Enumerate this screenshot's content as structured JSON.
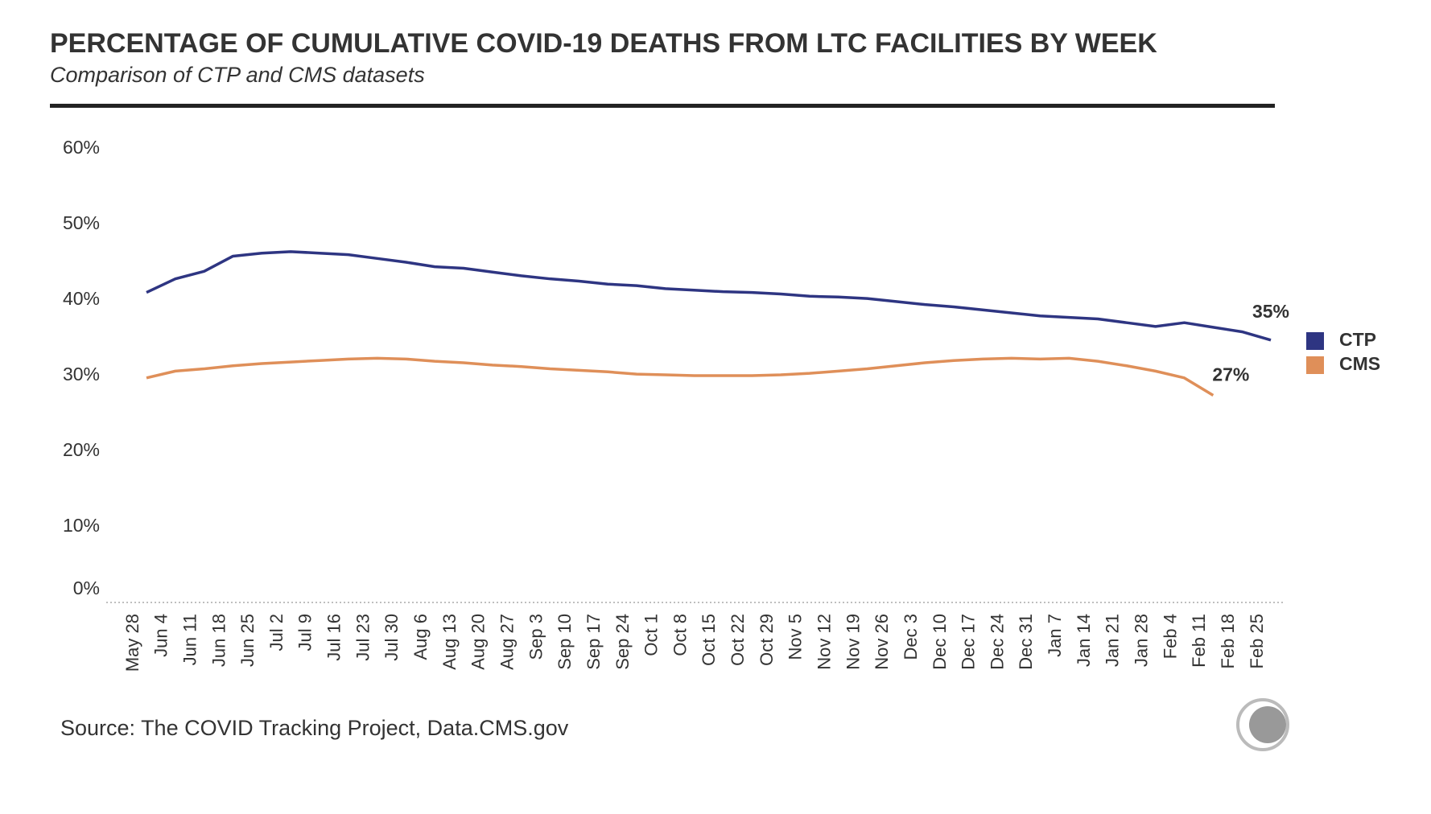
{
  "chart_data": {
    "type": "line",
    "title": "PERCENTAGE OF CUMULATIVE COVID-19 DEATHS FROM LTC FACILITIES BY WEEK",
    "subtitle": "Comparison of CTP and CMS datasets",
    "source": "Source: The COVID Tracking Project, Data.CMS.gov",
    "categories": [
      "May 28",
      "Jun 4",
      "Jun 11",
      "Jun 18",
      "Jun 25",
      "Jul 2",
      "Jul 9",
      "Jul 16",
      "Jul 23",
      "Jul 30",
      "Aug 6",
      "Aug 13",
      "Aug 20",
      "Aug 27",
      "Sep 3",
      "Sep 10",
      "Sep 17",
      "Sep 24",
      "Oct 1",
      "Oct 8",
      "Oct 15",
      "Oct 22",
      "Oct 29",
      "Nov 5",
      "Nov 12",
      "Nov 19",
      "Nov 26",
      "Dec 3",
      "Dec 10",
      "Dec 17",
      "Dec 24",
      "Dec 31",
      "Jan 7",
      "Jan 14",
      "Jan 21",
      "Jan 28",
      "Feb 4",
      "Feb 11",
      "Feb 18",
      "Feb 25"
    ],
    "series": [
      {
        "name": "CTP",
        "color": "#2e3582",
        "values": [
          41.0,
          42.8,
          43.8,
          45.8,
          46.2,
          46.4,
          46.2,
          46.0,
          45.5,
          45.0,
          44.4,
          44.2,
          43.7,
          43.2,
          42.8,
          42.5,
          42.1,
          41.9,
          41.5,
          41.3,
          41.1,
          41.0,
          40.8,
          40.5,
          40.4,
          40.2,
          39.8,
          39.4,
          39.1,
          38.7,
          38.3,
          37.9,
          37.7,
          37.5,
          37.0,
          36.5,
          37.0,
          36.4,
          35.8,
          34.7
        ],
        "value_labels": [
          null,
          null,
          null,
          null,
          null,
          null,
          null,
          null,
          null,
          null,
          null,
          null,
          null,
          null,
          null,
          null,
          null,
          null,
          null,
          null,
          null,
          null,
          null,
          null,
          null,
          null,
          null,
          null,
          null,
          null,
          null,
          null,
          null,
          null,
          null,
          null,
          null,
          null,
          null,
          "35%"
        ]
      },
      {
        "name": "CMS",
        "color": "#df8f59",
        "values": [
          29.7,
          30.6,
          30.9,
          31.3,
          31.6,
          31.8,
          32.0,
          32.2,
          32.3,
          32.2,
          31.9,
          31.7,
          31.4,
          31.2,
          30.9,
          30.7,
          30.5,
          30.2,
          30.1,
          30.0,
          30.0,
          30.0,
          30.1,
          30.3,
          30.6,
          30.9,
          31.3,
          31.7,
          32.0,
          32.2,
          32.3,
          32.2,
          32.3,
          31.9,
          31.3,
          30.6,
          29.7,
          27.4,
          null,
          null
        ],
        "value_labels": [
          null,
          null,
          null,
          null,
          null,
          null,
          null,
          null,
          null,
          null,
          null,
          null,
          null,
          null,
          null,
          null,
          null,
          null,
          null,
          null,
          null,
          null,
          null,
          null,
          null,
          null,
          null,
          null,
          null,
          null,
          null,
          null,
          null,
          null,
          null,
          null,
          null,
          "27%",
          null,
          null
        ]
      }
    ],
    "ylim": [
      0,
      60
    ],
    "yticks": [
      {
        "value": 0,
        "label": "0%"
      },
      {
        "value": 10,
        "label": "10%"
      },
      {
        "value": 20,
        "label": "20%"
      },
      {
        "value": 30,
        "label": "30%"
      },
      {
        "value": 40,
        "label": "40%"
      },
      {
        "value": 50,
        "label": "50%"
      },
      {
        "value": 60,
        "label": "60%"
      }
    ],
    "grid": false,
    "legend": "right"
  }
}
